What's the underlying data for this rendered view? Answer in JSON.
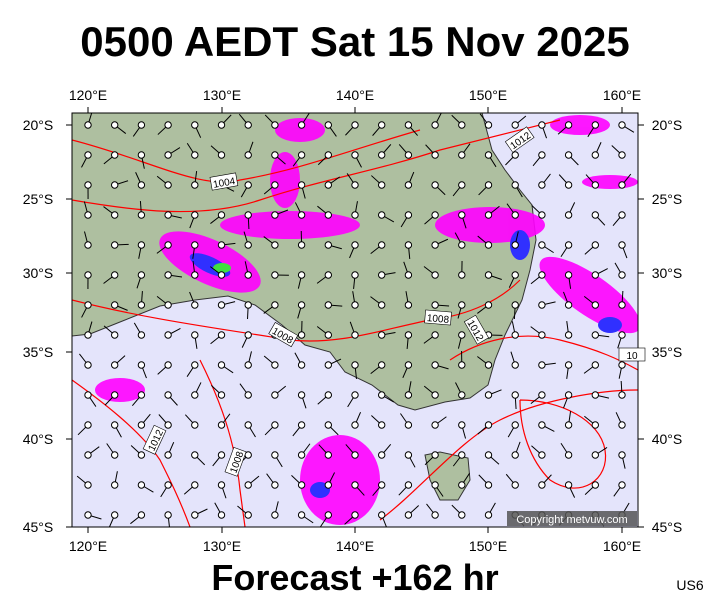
{
  "header": {
    "title": "0500 AEDT Sat 15 Nov 2025"
  },
  "map": {
    "lon_labels": [
      "120°E",
      "130°E",
      "140°E",
      "150°E",
      "160°E"
    ],
    "lat_labels": [
      "20°S",
      "25°S",
      "30°S",
      "35°S",
      "40°S",
      "45°S"
    ],
    "isobar_labels": [
      "1012",
      "1004",
      "1008",
      "1008",
      "1012",
      "1012",
      "1008",
      "10"
    ],
    "copyright": "Copyright metvuw.com"
  },
  "footer": {
    "forecast": "Forecast +162 hr",
    "code": "US6"
  }
}
